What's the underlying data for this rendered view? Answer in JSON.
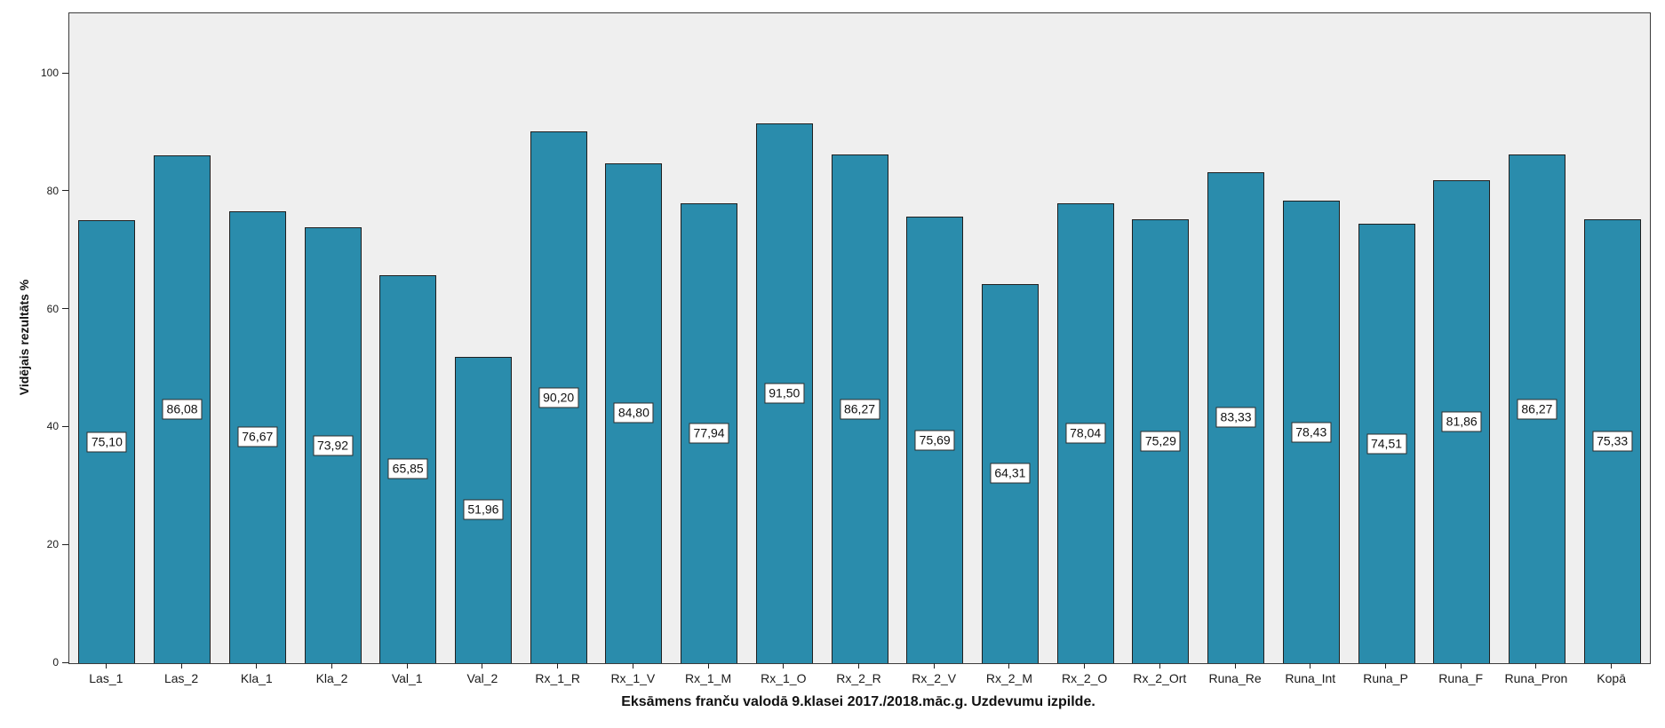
{
  "chart_data": {
    "type": "bar",
    "title": "Eksāmens franču valodā 9.klasei 2017./2018.māc.g. Uzdevumu izpilde.",
    "xlabel": "",
    "ylabel": "Vidējais rezultāts %",
    "categories": [
      "Las_1",
      "Las_2",
      "Kla_1",
      "Kla_2",
      "Val_1",
      "Val_2",
      "Rx_1_R",
      "Rx_1_V",
      "Rx_1_M",
      "Rx_1_O",
      "Rx_2_R",
      "Rx_2_V",
      "Rx_2_M",
      "Rx_2_O",
      "Rx_2_Ort",
      "Runa_Re",
      "Runa_Int",
      "Runa_P",
      "Runa_F",
      "Runa_Pron",
      "Kopā"
    ],
    "values": [
      75.1,
      86.08,
      76.67,
      73.92,
      65.85,
      51.96,
      90.2,
      84.8,
      77.94,
      91.5,
      86.27,
      75.69,
      64.31,
      78.04,
      75.29,
      83.33,
      78.43,
      74.51,
      81.86,
      86.27,
      75.33
    ],
    "value_labels": [
      "75,10",
      "86,08",
      "76,67",
      "73,92",
      "65,85",
      "51,96",
      "90,20",
      "84,80",
      "77,94",
      "91,50",
      "86,27",
      "75,69",
      "64,31",
      "78,04",
      "75,29",
      "83,33",
      "78,43",
      "74,51",
      "81,86",
      "86,27",
      "75,33"
    ],
    "y_ticks": [
      0,
      20,
      40,
      60,
      80,
      100
    ],
    "y_tick_labels": [
      "0",
      "20",
      "40",
      "60",
      "80",
      "100"
    ],
    "ylim": [
      0,
      110
    ],
    "grid": false,
    "legend": "none",
    "bar_color": "#2a8cac",
    "bar_border_color": "#1f1f1f",
    "plot_background": "#efefef",
    "plot_border_color": "#3c3c3c",
    "label_box_background": "#ffffff"
  }
}
